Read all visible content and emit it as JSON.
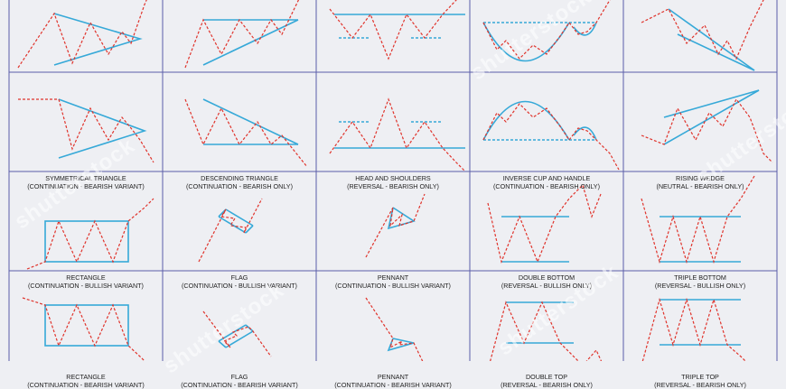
{
  "colors": {
    "background": "#eeeff3",
    "grid_line": "#5b5ea8",
    "price_line": "#e0332b",
    "pattern_line": "#36a9d8"
  },
  "watermark": "shutterstock",
  "cells": [
    {
      "title": "",
      "subtitle": "",
      "pattern": "symmetrical-triangle-bullish"
    },
    {
      "title": "",
      "subtitle": "",
      "pattern": "ascending-triangle-bullish"
    },
    {
      "title": "",
      "subtitle": "",
      "pattern": "inverse-head-and-shoulders"
    },
    {
      "title": "",
      "subtitle": "",
      "pattern": "cup-and-handle"
    },
    {
      "title": "",
      "subtitle": "",
      "pattern": "falling-wedge"
    },
    {
      "title": "SYMMETRICAL TRIANGLE",
      "subtitle": "(CONTINUATION - BEARISH VARIANT)",
      "pattern": "symmetrical-triangle-bearish"
    },
    {
      "title": "DESCENDING TRIANGLE",
      "subtitle": "(CONTINUATION - BEARISH ONLY)",
      "pattern": "descending-triangle"
    },
    {
      "title": "HEAD AND SHOULDERS",
      "subtitle": "(REVERSAL - BEARISH ONLY)",
      "pattern": "head-and-shoulders"
    },
    {
      "title": "INVERSE CUP AND HANDLE",
      "subtitle": "(CONTINUATION - BEARISH ONLY)",
      "pattern": "inverse-cup-and-handle"
    },
    {
      "title": "RISING WEDGE",
      "subtitle": "(NEUTRAL - BEARISH ONLY)",
      "pattern": "rising-wedge"
    },
    {
      "title": "RECTANGLE",
      "subtitle": "(CONTINUATION - BULLISH VARIANT)",
      "pattern": "rectangle-bullish"
    },
    {
      "title": "FLAG",
      "subtitle": "(CONTINUATION - BULLISH VARIANT)",
      "pattern": "flag-bullish"
    },
    {
      "title": "PENNANT",
      "subtitle": "(CONTINUATION - BULLISH VARIANT)",
      "pattern": "pennant-bullish"
    },
    {
      "title": "DOUBLE BOTTOM",
      "subtitle": "(REVERSAL - BULLISH ONLY)",
      "pattern": "double-bottom"
    },
    {
      "title": "TRIPLE BOTTOM",
      "subtitle": "(REVERSAL - BULLISH ONLY)",
      "pattern": "triple-bottom"
    },
    {
      "title": "RECTANGLE",
      "subtitle": "(CONTINUATION - BEARISH VARIANT)",
      "pattern": "rectangle-bearish"
    },
    {
      "title": "FLAG",
      "subtitle": "(CONTINUATION - BEARISH VARIANT)",
      "pattern": "flag-bearish"
    },
    {
      "title": "PENNANT",
      "subtitle": "(CONTINUATION - BEARISH VARIANT)",
      "pattern": "pennant-bearish"
    },
    {
      "title": "DOUBLE TOP",
      "subtitle": "(REVERSAL - BEARISH ONLY)",
      "pattern": "double-top"
    },
    {
      "title": "TRIPLE TOP",
      "subtitle": "(REVERSAL - BEARISH ONLY)",
      "pattern": "triple-top"
    }
  ]
}
